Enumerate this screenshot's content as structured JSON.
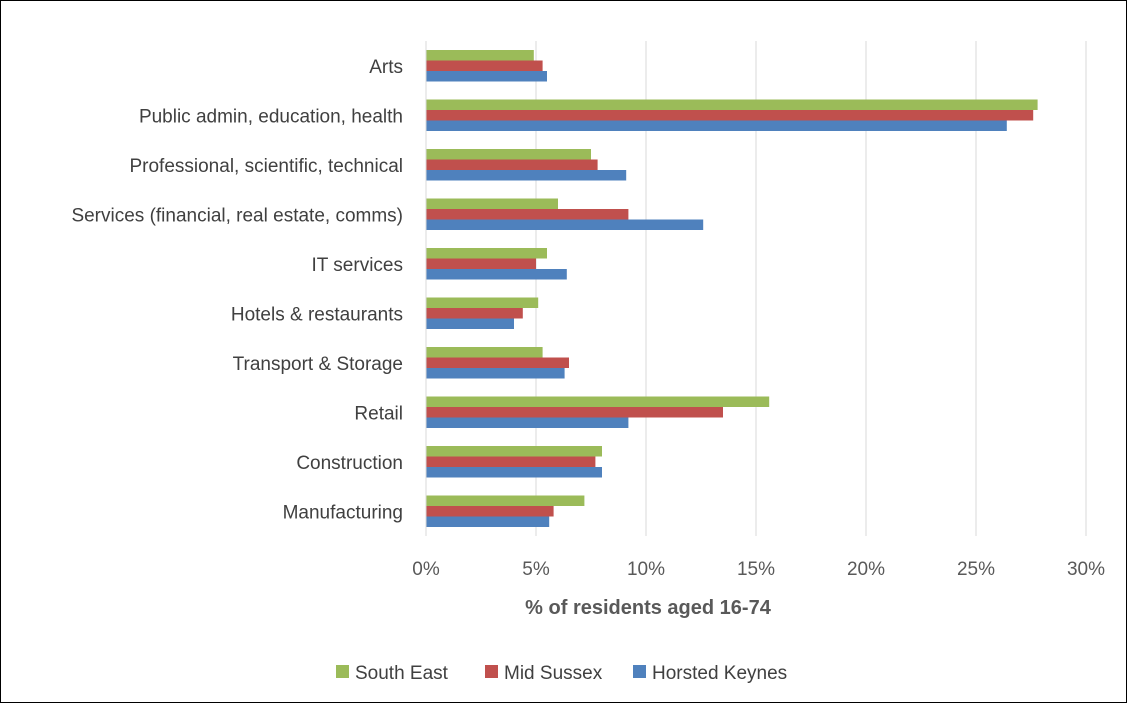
{
  "chart_data": {
    "type": "bar",
    "orientation": "horizontal",
    "categories": [
      "Arts",
      "Public admin, education, health",
      "Professional, scientific, technical",
      "Services (financial, real estate, comms)",
      "IT services",
      "Hotels & restaurants",
      "Transport & Storage",
      "Retail",
      "Construction",
      "Manufacturing"
    ],
    "series": [
      {
        "name": "South East",
        "color": "#9bbb59",
        "values": [
          4.9,
          27.8,
          7.5,
          6.0,
          5.5,
          5.1,
          5.3,
          15.6,
          8.0,
          7.2
        ]
      },
      {
        "name": "Mid Sussex",
        "color": "#c0504d",
        "values": [
          5.3,
          27.6,
          7.8,
          9.2,
          5.0,
          4.4,
          6.5,
          13.5,
          7.7,
          5.8
        ]
      },
      {
        "name": "Horsted Keynes",
        "color": "#4f81bd",
        "values": [
          5.5,
          26.4,
          9.1,
          12.6,
          6.4,
          4.0,
          6.3,
          9.2,
          8.0,
          5.6
        ]
      }
    ],
    "xlabel": "% of residents aged 16-74",
    "xlim": [
      0,
      30
    ],
    "xticks": [
      0,
      5,
      10,
      15,
      20,
      25,
      30
    ],
    "xtick_labels": [
      "0%",
      "5%",
      "10%",
      "15%",
      "20%",
      "25%",
      "30%"
    ],
    "grid": true,
    "legend_position": "bottom"
  }
}
